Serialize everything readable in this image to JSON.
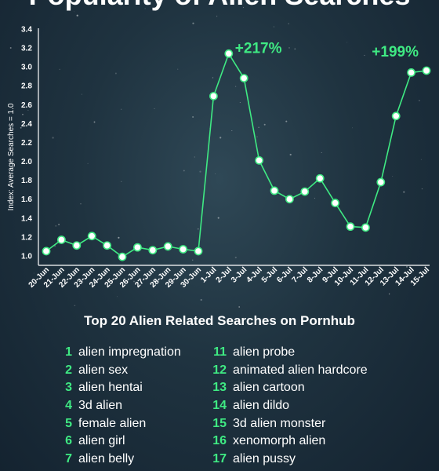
{
  "title": "Popularity of Alien Searches",
  "list_title": "Top 20 Alien Related Searches on Pornhub",
  "colors": {
    "accent": "#3fea83",
    "background": "#1f3340",
    "axis": "#ffffff",
    "text": "#ffffff"
  },
  "chart_data": {
    "type": "line",
    "title": "Popularity of Alien Searches",
    "xlabel": "",
    "ylabel": "Index: Average Searches = 1.0",
    "ylim": [
      0.9,
      3.4
    ],
    "yticks": [
      "1.0",
      "1.2",
      "1.4",
      "1.6",
      "1.8",
      "2.0",
      "2.2",
      "2.4",
      "2.6",
      "2.8",
      "3.0",
      "3.2",
      "3.4"
    ],
    "categories": [
      "20-Jun",
      "21-Jun",
      "22-Jun",
      "23-Jun",
      "24-Jun",
      "25-Jun",
      "26-Jun",
      "27-Jun",
      "28-Jun",
      "29-Jun",
      "30-Jun",
      "1-Jul",
      "2-Jul",
      "3-Jul",
      "4-Jul",
      "5-Jul",
      "6-Jul",
      "7-Jul",
      "8-Jul",
      "9-Jul",
      "10-Jul",
      "11-Jul",
      "12-Jul",
      "13-Jul",
      "14-Jul",
      "15-Jul"
    ],
    "values": [
      1.05,
      1.17,
      1.11,
      1.21,
      1.11,
      0.99,
      1.09,
      1.06,
      1.1,
      1.07,
      1.05,
      2.69,
      3.14,
      2.88,
      2.01,
      1.69,
      1.6,
      1.68,
      1.82,
      1.56,
      1.31,
      1.3,
      1.78,
      2.48,
      2.94,
      2.96
    ],
    "annotations": [
      {
        "text": "+217%",
        "index": 12
      },
      {
        "text": "+199%",
        "index": 25
      }
    ],
    "grid": false
  },
  "top_searches": [
    {
      "rank": "1",
      "term": "alien impregnation"
    },
    {
      "rank": "2",
      "term": "alien sex"
    },
    {
      "rank": "3",
      "term": "alien hentai"
    },
    {
      "rank": "4",
      "term": "3d alien"
    },
    {
      "rank": "5",
      "term": "female alien"
    },
    {
      "rank": "6",
      "term": "alien girl"
    },
    {
      "rank": "7",
      "term": "alien belly"
    },
    {
      "rank": "11",
      "term": "alien probe"
    },
    {
      "rank": "12",
      "term": "animated alien hardcore"
    },
    {
      "rank": "13",
      "term": "alien cartoon"
    },
    {
      "rank": "14",
      "term": "alien dildo"
    },
    {
      "rank": "15",
      "term": "3d alien monster"
    },
    {
      "rank": "16",
      "term": "xenomorph alien"
    },
    {
      "rank": "17",
      "term": "alien pussy"
    }
  ]
}
